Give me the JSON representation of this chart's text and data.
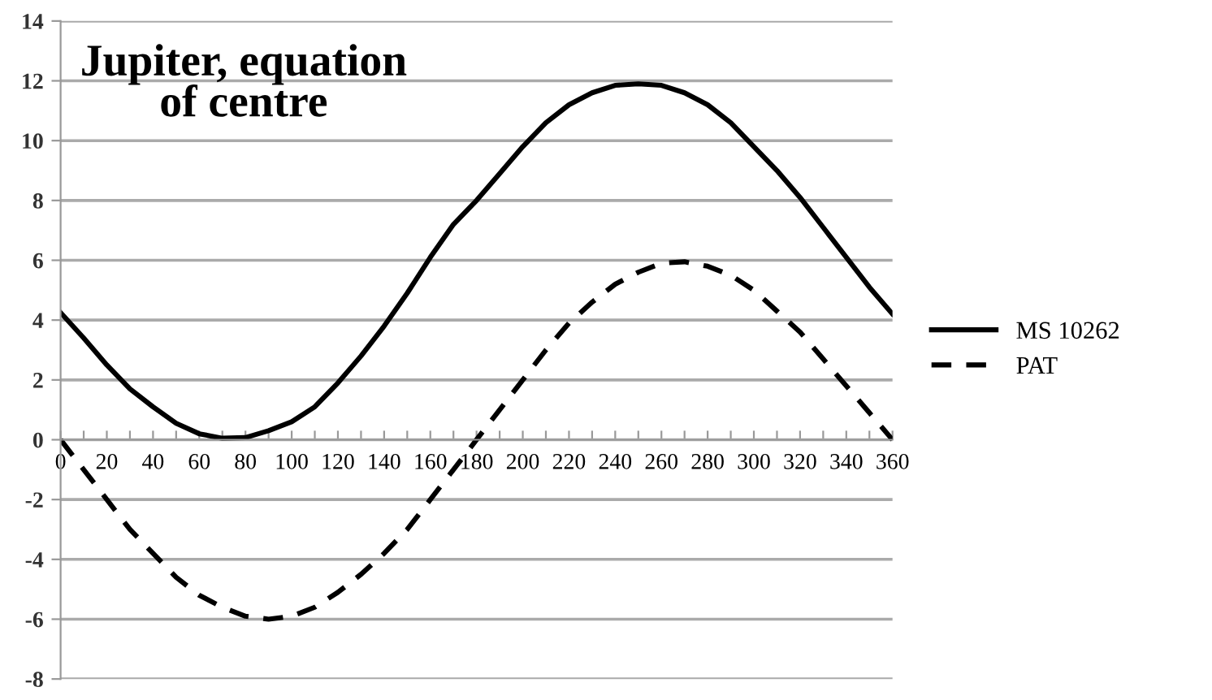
{
  "chart_data": {
    "type": "line",
    "title": "Jupiter, equation\nof centre",
    "x": [
      0,
      10,
      20,
      30,
      40,
      50,
      60,
      70,
      80,
      90,
      100,
      110,
      120,
      130,
      140,
      150,
      160,
      170,
      180,
      190,
      200,
      210,
      220,
      230,
      240,
      250,
      260,
      270,
      280,
      290,
      300,
      310,
      320,
      330,
      340,
      350,
      360
    ],
    "series": [
      {
        "name": "MS 10262",
        "color": "#000000",
        "line_style": "solid",
        "values": [
          4.25,
          3.4,
          2.5,
          1.7,
          1.1,
          0.55,
          0.2,
          0.05,
          0.07,
          0.3,
          0.6,
          1.1,
          1.9,
          2.8,
          3.8,
          4.9,
          6.1,
          7.2,
          8.0,
          8.9,
          9.8,
          10.6,
          11.2,
          11.6,
          11.85,
          11.9,
          11.85,
          11.6,
          11.2,
          10.6,
          9.8,
          9.0,
          8.1,
          7.1,
          6.1,
          5.1,
          4.2
        ]
      },
      {
        "name": "PAT",
        "color": "#000000",
        "line_style": "dashed",
        "values": [
          0,
          -1.0,
          -2.0,
          -3.0,
          -3.8,
          -4.6,
          -5.2,
          -5.6,
          -5.9,
          -6.0,
          -5.9,
          -5.6,
          -5.1,
          -4.5,
          -3.8,
          -3.0,
          -2.0,
          -1.0,
          0,
          1.0,
          2.0,
          3.0,
          3.9,
          4.6,
          5.2,
          5.6,
          5.9,
          5.95,
          5.8,
          5.5,
          5.0,
          4.3,
          3.6,
          2.7,
          1.8,
          0.9,
          0
        ]
      }
    ],
    "xlim": [
      0,
      360
    ],
    "xticks": [
      0,
      {
        "value": 10,
        "label": null
      },
      20,
      {
        "value": 30,
        "label": null
      },
      40,
      {
        "value": 50,
        "label": null
      },
      60,
      {
        "value": 70,
        "label": null
      },
      80,
      {
        "value": 90,
        "label": null
      },
      100,
      {
        "value": 110,
        "label": null
      },
      120,
      {
        "value": 130,
        "label": null
      },
      140,
      {
        "value": 150,
        "label": null
      },
      160,
      {
        "value": 170,
        "label": null
      },
      180,
      {
        "value": 190,
        "label": null
      },
      200,
      {
        "value": 210,
        "label": null
      },
      220,
      {
        "value": 230,
        "label": null
      },
      240,
      {
        "value": 250,
        "label": null
      },
      260,
      {
        "value": 270,
        "label": null
      },
      280,
      {
        "value": 290,
        "label": null
      },
      300,
      {
        "value": 310,
        "label": null
      },
      320,
      {
        "value": 330,
        "label": null
      },
      340,
      {
        "value": 350,
        "label": null
      },
      360
    ],
    "ylim": [
      -8,
      14
    ],
    "yticks": [
      -8,
      -6,
      -4,
      -2,
      0,
      2,
      4,
      6,
      8,
      10,
      12,
      14
    ],
    "grid": "y",
    "legend": "right",
    "marker": "none"
  }
}
